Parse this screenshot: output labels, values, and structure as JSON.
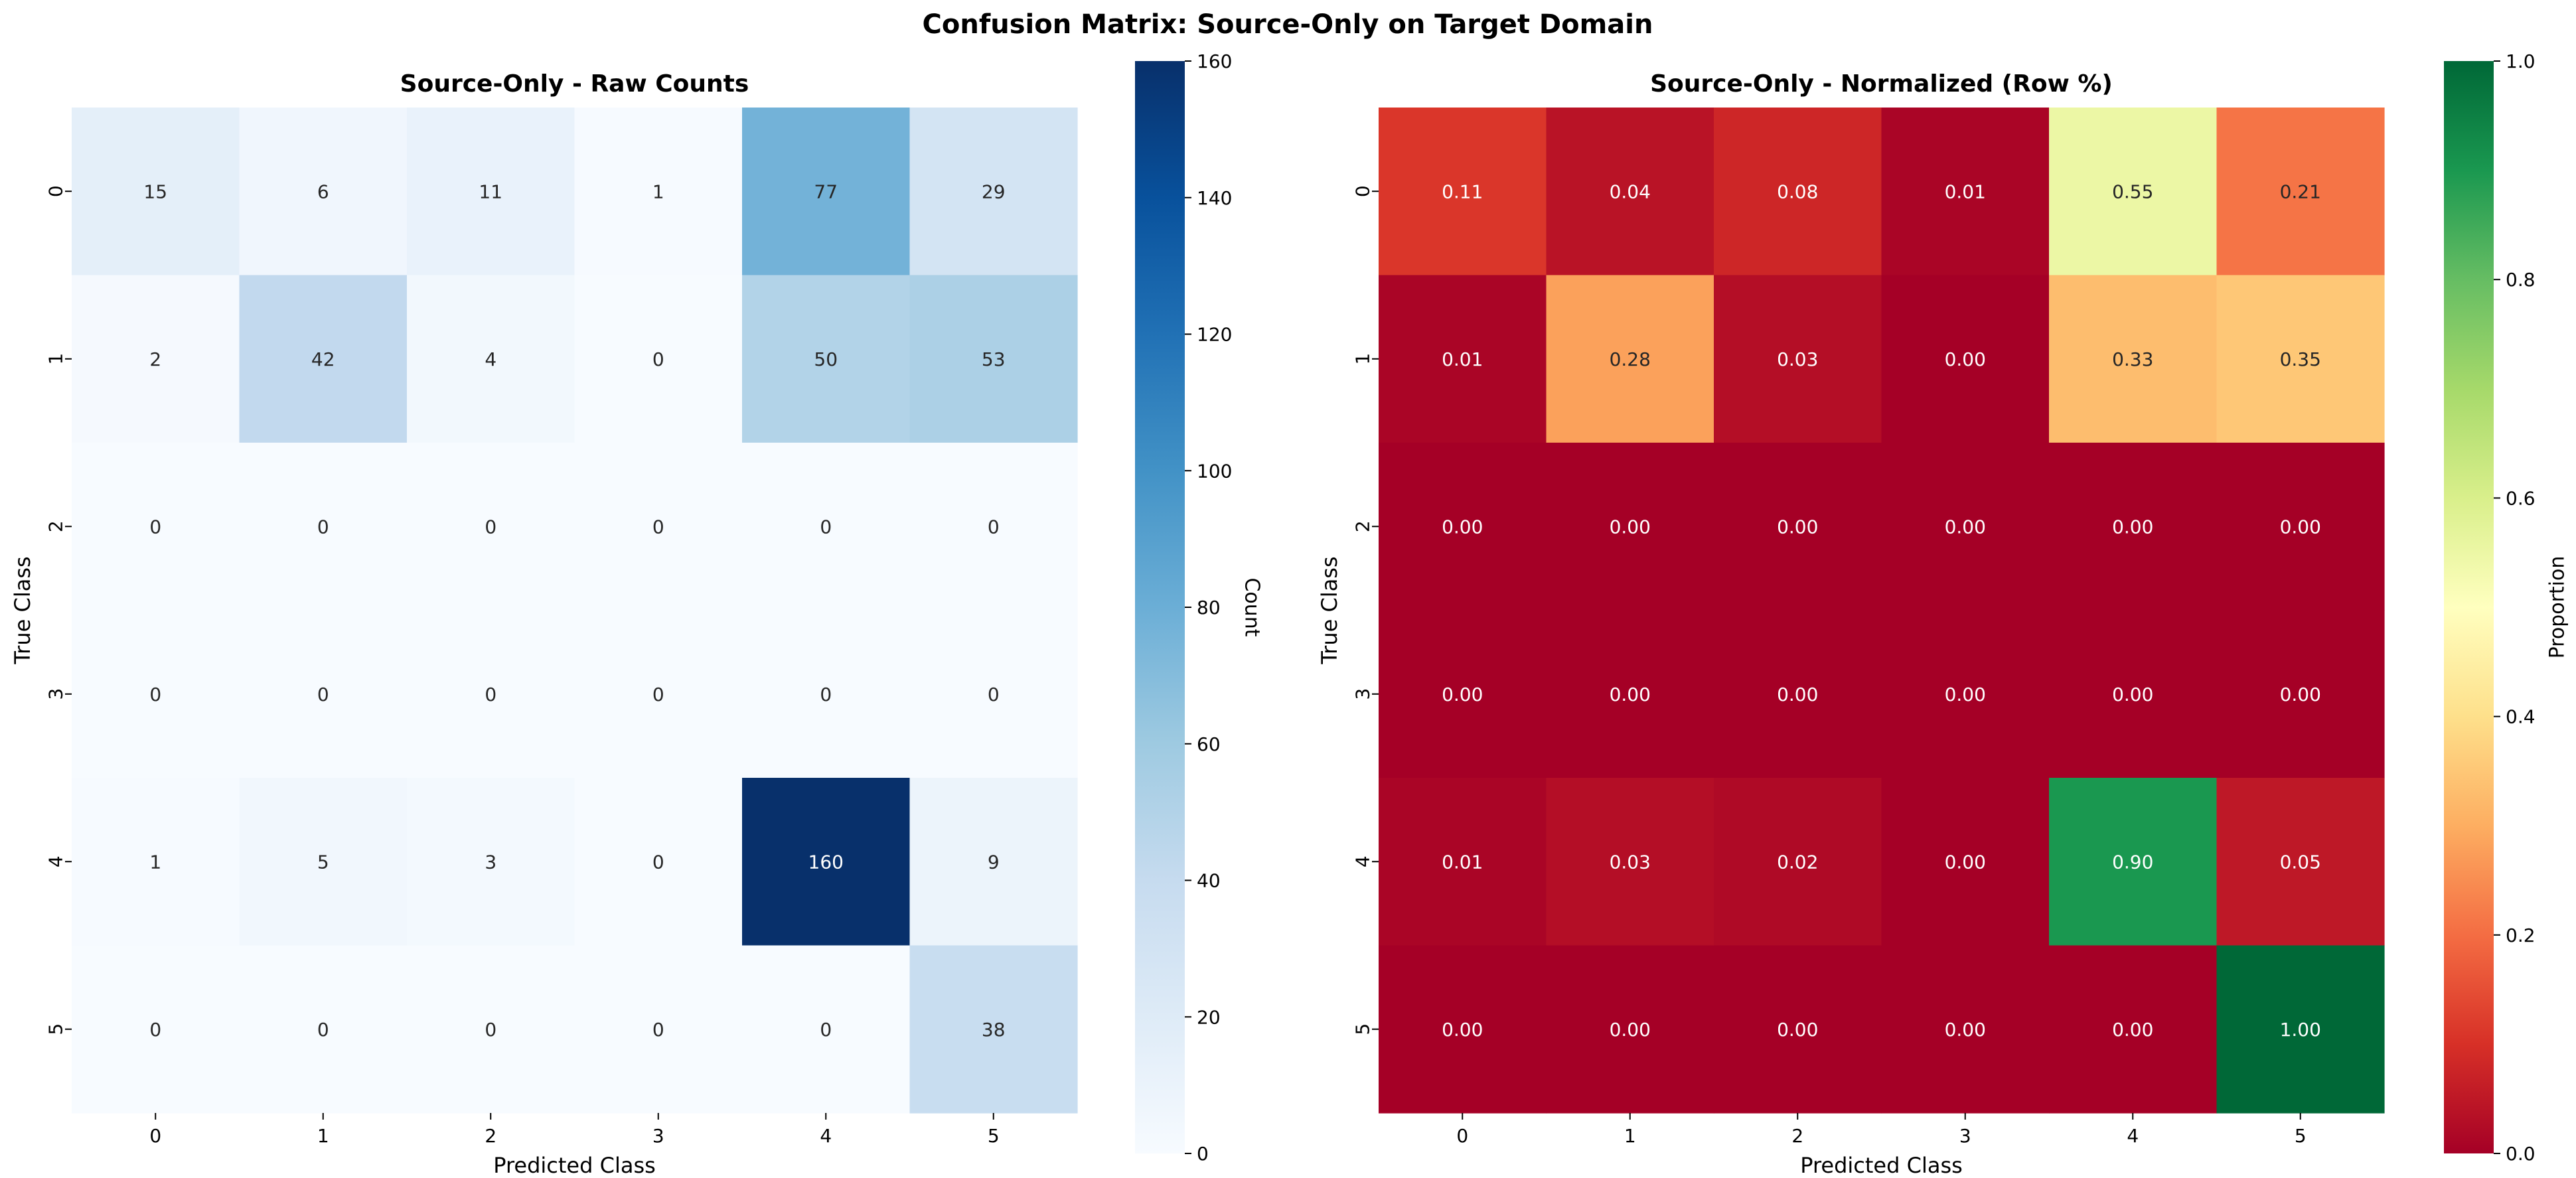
{
  "suptitle": "Confusion Matrix: Source-Only on Target Domain",
  "chart_data": [
    {
      "type": "heatmap",
      "title": "Source-Only - Raw Counts",
      "xlabel": "Predicted Class",
      "ylabel": "True Class",
      "x_categories": [
        "0",
        "1",
        "2",
        "3",
        "4",
        "5"
      ],
      "y_categories": [
        "0",
        "1",
        "2",
        "3",
        "4",
        "5"
      ],
      "values": [
        [
          15,
          6,
          11,
          1,
          77,
          29
        ],
        [
          2,
          42,
          4,
          0,
          50,
          53
        ],
        [
          0,
          0,
          0,
          0,
          0,
          0
        ],
        [
          0,
          0,
          0,
          0,
          0,
          0
        ],
        [
          1,
          5,
          3,
          0,
          160,
          9
        ],
        [
          0,
          0,
          0,
          0,
          0,
          38
        ]
      ],
      "annotations": [
        [
          "15",
          "6",
          "11",
          "1",
          "77",
          "29"
        ],
        [
          "2",
          "42",
          "4",
          "0",
          "50",
          "53"
        ],
        [
          "0",
          "0",
          "0",
          "0",
          "0",
          "0"
        ],
        [
          "0",
          "0",
          "0",
          "0",
          "0",
          "0"
        ],
        [
          "1",
          "5",
          "3",
          "0",
          "160",
          "9"
        ],
        [
          "0",
          "0",
          "0",
          "0",
          "0",
          "38"
        ]
      ],
      "colormap": "Blues",
      "vmin": 0,
      "vmax": 160,
      "colorbar_label": "Count",
      "colorbar_ticks": [
        "0",
        "20",
        "40",
        "60",
        "80",
        "100",
        "120",
        "140",
        "160"
      ],
      "colorbar_tick_values": [
        0,
        20,
        40,
        60,
        80,
        100,
        120,
        140,
        160
      ]
    },
    {
      "type": "heatmap",
      "title": "Source-Only - Normalized (Row %)",
      "xlabel": "Predicted Class",
      "ylabel": "True Class",
      "x_categories": [
        "0",
        "1",
        "2",
        "3",
        "4",
        "5"
      ],
      "y_categories": [
        "0",
        "1",
        "2",
        "3",
        "4",
        "5"
      ],
      "values": [
        [
          0.11,
          0.04,
          0.08,
          0.01,
          0.55,
          0.21
        ],
        [
          0.01,
          0.28,
          0.03,
          0.0,
          0.33,
          0.35
        ],
        [
          0.0,
          0.0,
          0.0,
          0.0,
          0.0,
          0.0
        ],
        [
          0.0,
          0.0,
          0.0,
          0.0,
          0.0,
          0.0
        ],
        [
          0.01,
          0.03,
          0.02,
          0.0,
          0.9,
          0.05
        ],
        [
          0.0,
          0.0,
          0.0,
          0.0,
          0.0,
          1.0
        ]
      ],
      "annotations": [
        [
          "0.11",
          "0.04",
          "0.08",
          "0.01",
          "0.55",
          "0.21"
        ],
        [
          "0.01",
          "0.28",
          "0.03",
          "0.00",
          "0.33",
          "0.35"
        ],
        [
          "0.00",
          "0.00",
          "0.00",
          "0.00",
          "0.00",
          "0.00"
        ],
        [
          "0.00",
          "0.00",
          "0.00",
          "0.00",
          "0.00",
          "0.00"
        ],
        [
          "0.01",
          "0.03",
          "0.02",
          "0.00",
          "0.90",
          "0.05"
        ],
        [
          "0.00",
          "0.00",
          "0.00",
          "0.00",
          "0.00",
          "1.00"
        ]
      ],
      "colormap": "RdYlGn",
      "vmin": 0,
      "vmax": 1,
      "colorbar_label": "Proportion",
      "colorbar_ticks": [
        "0.0",
        "0.2",
        "0.4",
        "0.6",
        "0.8",
        "1.0"
      ],
      "colorbar_tick_values": [
        0,
        0.2,
        0.4,
        0.6,
        0.8,
        1.0
      ]
    }
  ]
}
